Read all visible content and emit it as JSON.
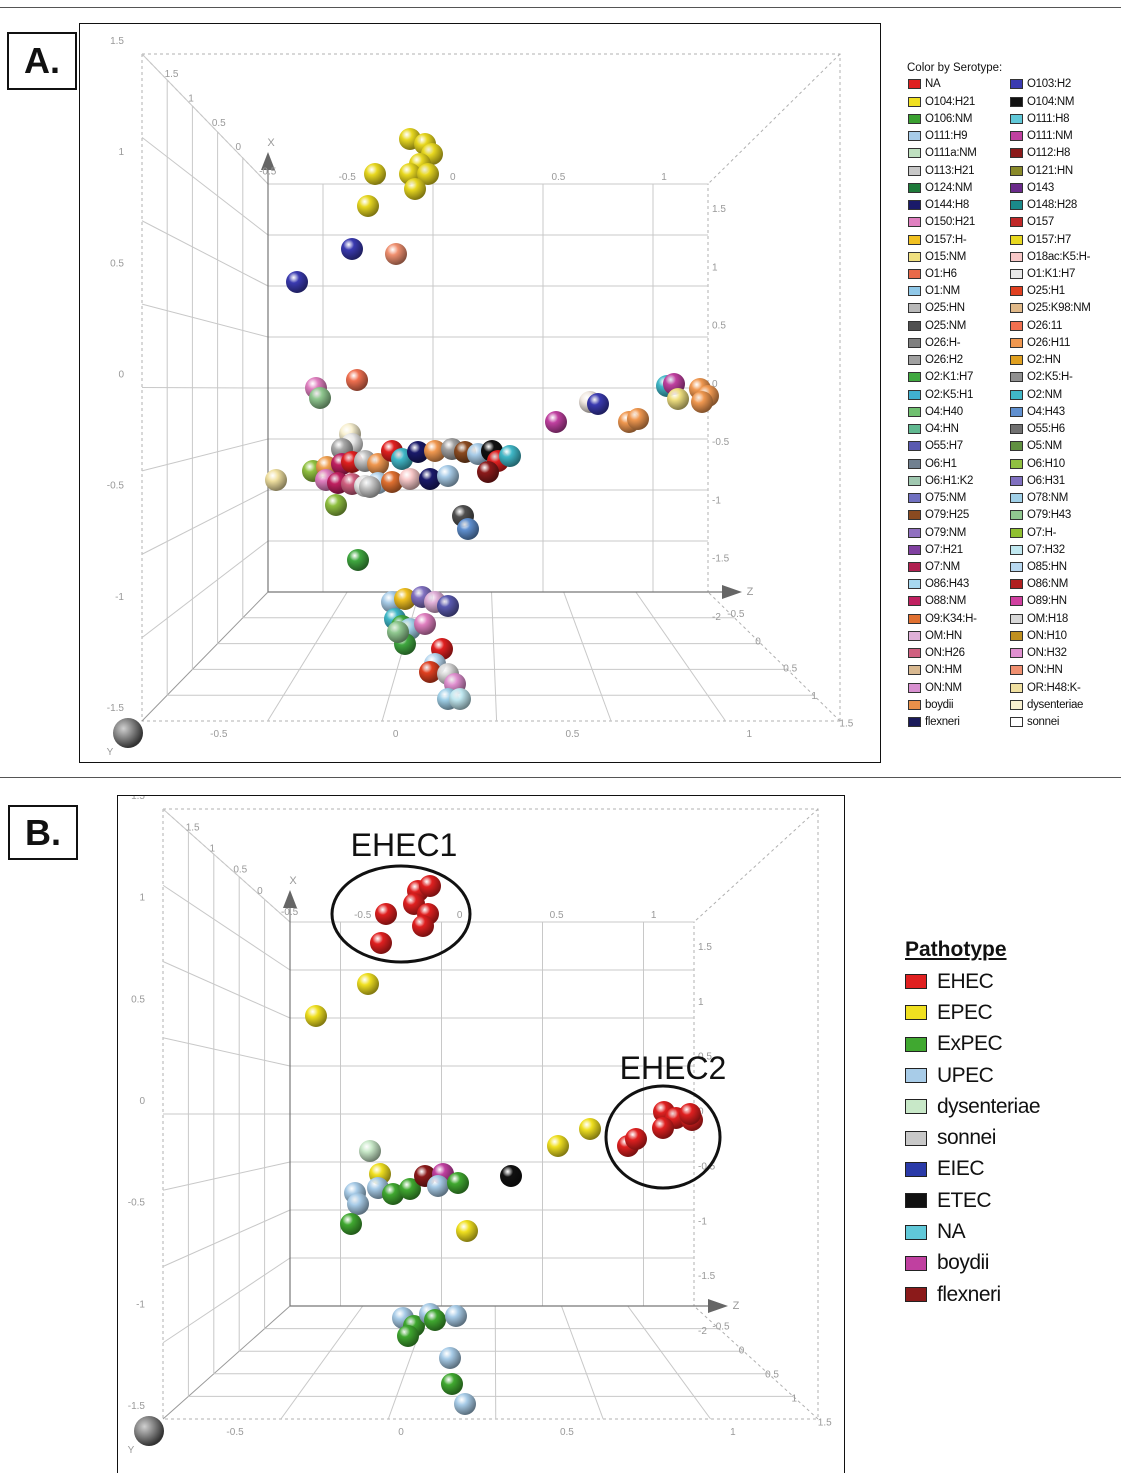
{
  "panels": [
    {
      "id": "A",
      "label": "A.",
      "chart_data": {
        "type": "scatter",
        "title": "",
        "legend_title": "Color by Serotype:",
        "legend_placement": "right",
        "x_ticks": [
          "-0.5",
          "0",
          "0.5",
          "1"
        ],
        "y_ticks": [
          "-1.5",
          "-1",
          "-0.5",
          "0",
          "0.5",
          "1",
          "1.5"
        ],
        "z_ticks": [
          "-0.5",
          "0",
          "0.5",
          "1",
          "1.5"
        ],
        "back_ticks_top": [
          "-0.5",
          "0",
          "0.5",
          "1"
        ],
        "back_ticks_right": [
          "1.5",
          "1",
          "0.5",
          "0",
          "-0.5",
          "-1",
          "-1.5",
          "-2"
        ],
        "depth_ticks": [
          "1.5",
          "1",
          "0.5",
          "0",
          "-0.5"
        ],
        "axis_x_label": "X",
        "axis_y_label": "Y",
        "axis_z_label": "Z",
        "grid": true,
        "categories": [
          "NA",
          "O103:H2",
          "O104:H21",
          "O104:NM",
          "O106:NM",
          "O111:H8",
          "O111:H9",
          "O111:NM",
          "O111a:NM",
          "O112:H8",
          "O113:H21",
          "O121:HN",
          "O124:NM",
          "O143",
          "O144:H8",
          "O148:H28",
          "O150:H21",
          "O157",
          "O157:H-",
          "O157:H7",
          "O15:NM",
          "O18ac:K5:H-",
          "O1:H6",
          "O1:K1:H7",
          "O1:NM",
          "O25:H1",
          "O25:HN",
          "O25:K98:NM",
          "O25:NM",
          "O26:11",
          "O26:H-",
          "O26:H11",
          "O26:H2",
          "O2:HN",
          "O2:K1:H7",
          "O2:K5:H-",
          "O2:K5:H1",
          "O2:NM",
          "O4:H40",
          "O4:H43",
          "O4:HN",
          "O55:H6",
          "O55:H7",
          "O5:NM",
          "O6:H1",
          "O6:H10",
          "O6:H1:K2",
          "O6:H31",
          "O75:NM",
          "O78:NM",
          "O79:H25",
          "O79:H43",
          "O79:NM",
          "O7:H-",
          "O7:H21",
          "O7:H32",
          "O7:NM",
          "O85:HN",
          "O86:H43",
          "O86:NM",
          "O88:NM",
          "O89:HN",
          "O9:K34:H-",
          "OM:H18",
          "OM:HN",
          "ON:H10",
          "ON:H26",
          "ON:H32",
          "ON:HM",
          "ON:HN",
          "ON:NM",
          "OR:H48:K-",
          "boydii",
          "dysenteriae",
          "flexneri",
          "sonnei"
        ],
        "colors": [
          "#e02020",
          "#3a3ab0",
          "#f0e020",
          "#111111",
          "#3aa030",
          "#60c8d8",
          "#a8cce8",
          "#c040a0",
          "#bfe0c0",
          "#8b1a1a",
          "#c8c8c8",
          "#8a8a2a",
          "#1e7a3a",
          "#6a2a8a",
          "#1a1a6a",
          "#1a8a8a",
          "#e080c0",
          "#c02828",
          "#f0c020",
          "#e8d820",
          "#f0e080",
          "#f8c8c8",
          "#e86a4a",
          "#e8e8e8",
          "#90c8e8",
          "#e04020",
          "#b8b8b8",
          "#e0b888",
          "#505050",
          "#f07050",
          "#808080",
          "#f09850",
          "#a0a0a0",
          "#e0a020",
          "#40a840",
          "#909090",
          "#40b0d0",
          "#40b8c8",
          "#70c070",
          "#6090d0",
          "#60b890",
          "#707070",
          "#5a5ab0",
          "#609040",
          "#708090",
          "#90c040",
          "#a0c8b0",
          "#8070c0",
          "#7070c0",
          "#a0d0e8",
          "#8a4a20",
          "#90c890",
          "#9070c0",
          "#90c030",
          "#8040a0",
          "#c0e8f0",
          "#b02050",
          "#b8d8f0",
          "#a8d8f0",
          "#b02020",
          "#c02060",
          "#d040a0",
          "#e07030",
          "#d8d8d8",
          "#e0b0d8",
          "#c09020",
          "#d06080",
          "#e090d0",
          "#d8b890",
          "#f09070",
          "#d890d0",
          "#f0e0a0",
          "#e8904a",
          "#f8f0d0",
          "#1a1a5a",
          "#ffffff"
        ],
        "points": [
          {
            "x": 0.05,
            "y": 1.1,
            "z": 0.0,
            "color": "#e8d820"
          },
          {
            "x": 0.1,
            "y": 1.2,
            "z": 0.1,
            "color": "#e8d820"
          },
          {
            "x": -0.2,
            "y": 0.8,
            "z": 0.0,
            "color": "#3a3ab0"
          },
          {
            "x": -0.05,
            "y": 0.75,
            "z": 0.0,
            "color": "#f09070"
          },
          {
            "x": -0.6,
            "y": 0.5,
            "z": 0.0,
            "color": "#3a3ab0"
          },
          {
            "x": 0.9,
            "y": -0.3,
            "z": 0.0,
            "color": "#f09850"
          },
          {
            "x": 0.5,
            "y": -0.5,
            "z": 0.0,
            "color": "#c040a0"
          },
          {
            "x": 0.0,
            "y": -0.9,
            "z": 0.0,
            "color": "#e02020"
          },
          {
            "x": 0.2,
            "y": -1.1,
            "z": 0.0,
            "color": "#505050"
          },
          {
            "x": 0.0,
            "y": -1.8,
            "z": 0.0,
            "color": "#40b8c8"
          },
          {
            "x": 0.1,
            "y": -2.3,
            "z": 0.0,
            "color": "#e04020"
          }
        ]
      }
    },
    {
      "id": "B",
      "label": "B.",
      "chart_data": {
        "type": "scatter",
        "title": "",
        "legend_title": "Pathotype",
        "legend_placement": "right",
        "x_ticks": [
          "-0.5",
          "0",
          "0.5",
          "1"
        ],
        "y_ticks": [
          "-1.5",
          "-1",
          "-0.5",
          "0",
          "0.5",
          "1",
          "1.5"
        ],
        "z_ticks": [
          "-0.5",
          "0",
          "0.5",
          "1",
          "1.5"
        ],
        "back_ticks_top": [
          "-0.5",
          "0",
          "0.5",
          "1"
        ],
        "back_ticks_right": [
          "1.5",
          "1",
          "0.5",
          "0",
          "-0.5",
          "-1",
          "-1.5",
          "-2"
        ],
        "depth_ticks": [
          "1.5",
          "1",
          "0.5",
          "0",
          "-0.5"
        ],
        "axis_x_label": "X",
        "axis_y_label": "Y",
        "axis_z_label": "Z",
        "grid": true,
        "annotations": [
          "EHEC1",
          "EHEC2"
        ],
        "categories": [
          "EHEC",
          "EPEC",
          "ExPEC",
          "UPEC",
          "dysenteriae",
          "sonnei",
          "EIEC",
          "ETEC",
          "NA",
          "boydii",
          "flexneri"
        ],
        "colors": [
          "#e02020",
          "#f0e020",
          "#40a830",
          "#a8cce8",
          "#c8e8c8",
          "#c8c8c8",
          "#2a3aa8",
          "#111111",
          "#60c8d8",
          "#c040a0",
          "#8b1a1a"
        ],
        "points": [
          {
            "x": 0.0,
            "y": 1.1,
            "z": 0.0,
            "color": "#e02020"
          },
          {
            "x": 1.0,
            "y": -0.3,
            "z": 0.0,
            "color": "#e02020"
          },
          {
            "x": -0.2,
            "y": 0.6,
            "z": 0.0,
            "color": "#f0e020"
          },
          {
            "x": -0.6,
            "y": 0.4,
            "z": 0.0,
            "color": "#f0e020"
          },
          {
            "x": 0.35,
            "y": -0.6,
            "z": 0.0,
            "color": "#111111"
          },
          {
            "x": 0.0,
            "y": -0.7,
            "z": 0.0,
            "color": "#8b1a1a"
          },
          {
            "x": 0.1,
            "y": -0.7,
            "z": 0.0,
            "color": "#c040a0"
          },
          {
            "x": -0.3,
            "y": -0.5,
            "z": 0.0,
            "color": "#c8e8c8"
          },
          {
            "x": -0.3,
            "y": -0.8,
            "z": 0.0,
            "color": "#a8cce8"
          },
          {
            "x": 0.2,
            "y": -1.0,
            "z": 0.0,
            "color": "#f0e020"
          },
          {
            "x": 0.0,
            "y": -1.8,
            "z": 0.0,
            "color": "#40a830"
          },
          {
            "x": 0.1,
            "y": -2.3,
            "z": 0.0,
            "color": "#a8cce8"
          }
        ]
      }
    }
  ]
}
